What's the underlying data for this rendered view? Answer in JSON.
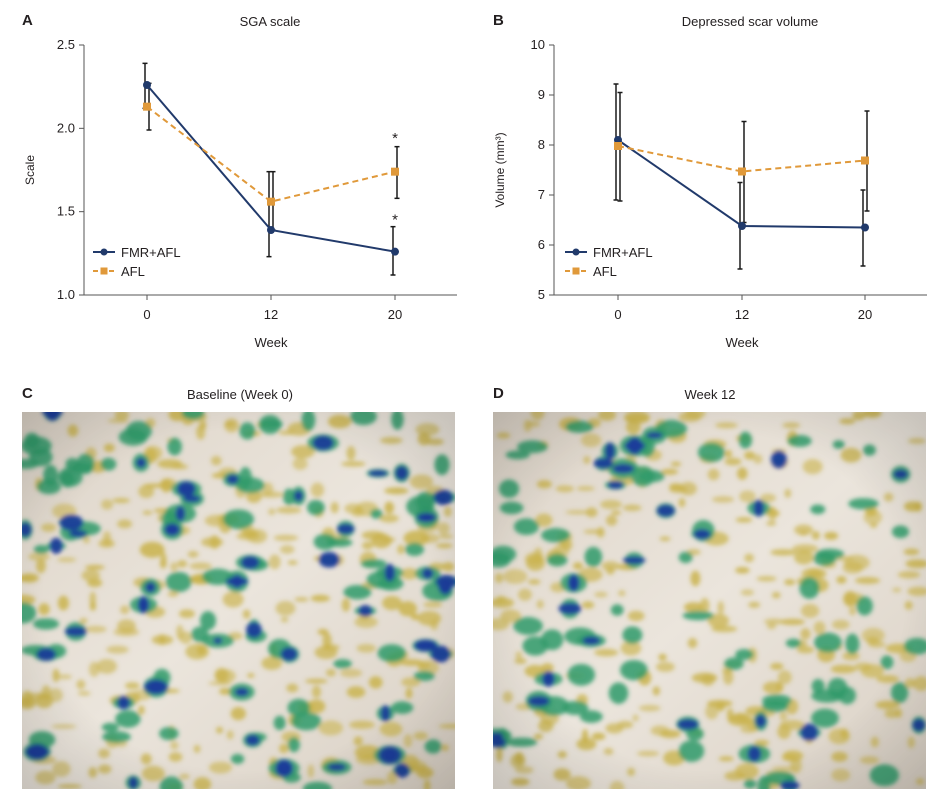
{
  "colors": {
    "fmr": "#213a6b",
    "afl": "#e0993a",
    "error": "#1a1a1a",
    "axis": "#555555",
    "skin": "#e4dcd2",
    "map_yellow": "#c9b24a",
    "map_green": "#2f9a6a",
    "map_blue": "#1c3d9a"
  },
  "panels": [
    {
      "letter": "A",
      "title": "SGA scale"
    },
    {
      "letter": "B",
      "title": "Depressed scar volume"
    },
    {
      "letter": "C",
      "title": "Baseline (Week 0)"
    },
    {
      "letter": "D",
      "title": "Week 12"
    }
  ],
  "chart_data": [
    {
      "type": "line",
      "title": "SGA scale",
      "xlabel": "Week",
      "ylabel": "Scale",
      "x": [
        0,
        12,
        20
      ],
      "x_tick_labels": [
        "0",
        "12",
        "20"
      ],
      "ylim": [
        1.0,
        2.5
      ],
      "y_ticks": [
        1.0,
        1.5,
        2.0,
        2.5
      ],
      "y_tick_labels": [
        "1.0",
        "1.5",
        "2.0",
        "2.5"
      ],
      "legend_position": "bottom-left",
      "series": [
        {
          "name": "FMR+AFL",
          "values": [
            2.26,
            1.39,
            1.26
          ],
          "error_low": [
            2.12,
            1.23,
            1.12
          ],
          "error_high": [
            2.39,
            1.74,
            1.41
          ],
          "style": "solid",
          "marker": "circle"
        },
        {
          "name": "AFL",
          "values": [
            2.13,
            1.56,
            1.74
          ],
          "error_low": [
            1.99,
            1.39,
            1.58
          ],
          "error_high": [
            2.27,
            1.74,
            1.89
          ],
          "style": "dashed",
          "marker": "square"
        }
      ],
      "annotations": [
        {
          "text": "*",
          "x": 20,
          "y": 1.96
        },
        {
          "text": "*",
          "x": 20,
          "y": 1.47
        }
      ]
    },
    {
      "type": "line",
      "title": "Depressed scar volume",
      "xlabel": "Week",
      "ylabel": "Volume (mm³)",
      "x": [
        0,
        12,
        20
      ],
      "x_tick_labels": [
        "0",
        "12",
        "20"
      ],
      "ylim": [
        5,
        10
      ],
      "y_ticks": [
        5,
        6,
        7,
        8,
        9,
        10
      ],
      "y_tick_labels": [
        "5",
        "6",
        "7",
        "8",
        "9",
        "10"
      ],
      "legend_position": "bottom-left",
      "series": [
        {
          "name": "FMR+AFL",
          "values": [
            8.1,
            6.38,
            6.35
          ],
          "error_low": [
            6.9,
            5.52,
            5.58
          ],
          "error_high": [
            9.22,
            7.25,
            7.1
          ],
          "style": "solid",
          "marker": "circle"
        },
        {
          "name": "AFL",
          "values": [
            7.98,
            7.47,
            7.69
          ],
          "error_low": [
            6.88,
            6.45,
            6.68
          ],
          "error_high": [
            9.05,
            8.47,
            8.68
          ],
          "style": "dashed",
          "marker": "square"
        }
      ]
    }
  ]
}
